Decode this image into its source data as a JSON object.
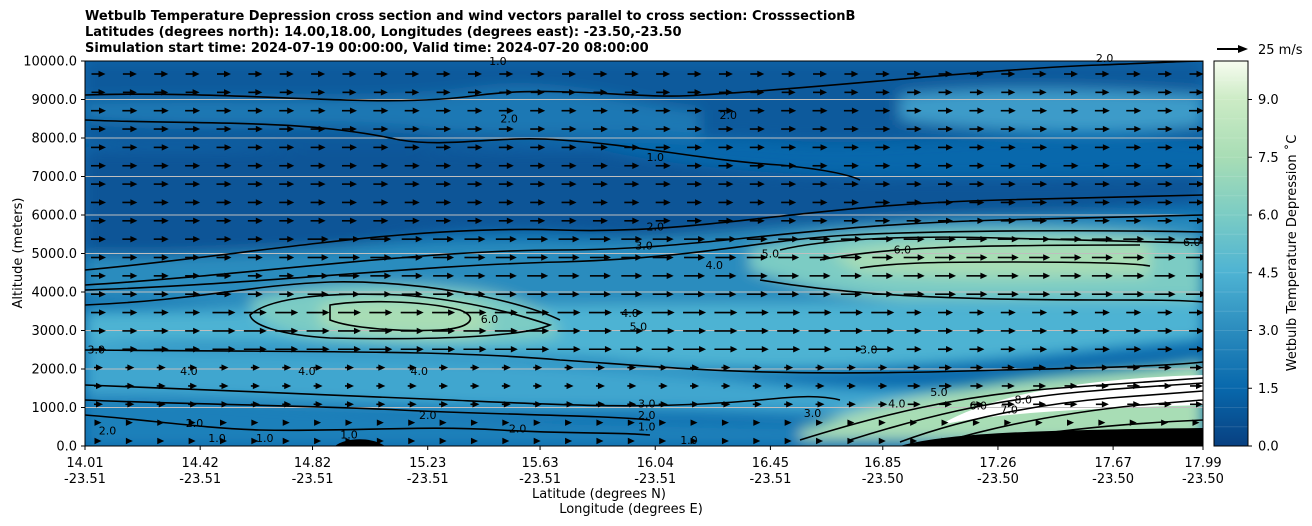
{
  "chart_data": {
    "type": "contour",
    "title_lines": [
      "Wetbulb Temperature Depression cross section and wind vectors parallel to cross section: CrosssectionB",
      "Latitudes (degrees north): 14.00,18.00, Longitudes (degrees east): -23.50,-23.50",
      "Simulation start time: 2024-07-19 00:00:00, Valid time: 2024-07-20 08:00:00"
    ],
    "ylabel": "Altitude (meters)",
    "xlabel_lat": "Latitude (degrees N)",
    "xlabel_lon": "Longitude (degrees E)",
    "ylim": [
      0,
      10000
    ],
    "yticks": [
      "0.0",
      "1000.0",
      "2000.0",
      "3000.0",
      "4000.0",
      "5000.0",
      "6000.0",
      "7000.0",
      "8000.0",
      "9000.0",
      "10000.0"
    ],
    "xticks": [
      {
        "lat": "14.01",
        "lon": "-23.51"
      },
      {
        "lat": "14.42",
        "lon": "-23.51"
      },
      {
        "lat": "14.82",
        "lon": "-23.51"
      },
      {
        "lat": "15.23",
        "lon": "-23.51"
      },
      {
        "lat": "15.63",
        "lon": "-23.51"
      },
      {
        "lat": "16.04",
        "lon": "-23.51"
      },
      {
        "lat": "16.45",
        "lon": "-23.51"
      },
      {
        "lat": "16.85",
        "lon": "-23.50"
      },
      {
        "lat": "17.26",
        "lon": "-23.50"
      },
      {
        "lat": "17.67",
        "lon": "-23.50"
      },
      {
        "lat": "17.99",
        "lon": "-23.50"
      }
    ],
    "grid": "horizontal",
    "colorbar": {
      "label": "Wetbulb Temperature Depression ˚C",
      "range": [
        0,
        10
      ],
      "ticks": [
        "0.0",
        "1.5",
        "3.0",
        "4.5",
        "6.0",
        "7.5",
        "9.0"
      ],
      "colormap": "GnBu_r"
    },
    "quiver_key": "25 m/s",
    "contour_labels": [
      {
        "text": "1.0",
        "lat": 15.48,
        "alt": 9900
      },
      {
        "text": "2.0",
        "lat": 15.52,
        "alt": 8400
      },
      {
        "text": "2.0",
        "lat": 16.3,
        "alt": 8500
      },
      {
        "text": "1.0",
        "lat": 16.04,
        "alt": 7400
      },
      {
        "text": "2.0",
        "lat": 16.04,
        "alt": 5600
      },
      {
        "text": "3.0",
        "lat": 16.0,
        "alt": 5100
      },
      {
        "text": "4.0",
        "lat": 16.25,
        "alt": 4600
      },
      {
        "text": "5.0",
        "lat": 16.45,
        "alt": 4900
      },
      {
        "text": "6.0",
        "lat": 16.92,
        "alt": 5000
      },
      {
        "text": "6.0",
        "lat": 17.95,
        "alt": 5200
      },
      {
        "text": "4.0",
        "lat": 15.95,
        "alt": 3350
      },
      {
        "text": "5.0",
        "lat": 15.98,
        "alt": 3000
      },
      {
        "text": "6.0",
        "lat": 15.45,
        "alt": 3200
      },
      {
        "text": "3.0",
        "lat": 14.05,
        "alt": 2400
      },
      {
        "text": "4.0",
        "lat": 14.38,
        "alt": 1850
      },
      {
        "text": "4.0",
        "lat": 14.8,
        "alt": 1850
      },
      {
        "text": "4.0",
        "lat": 15.2,
        "alt": 1850
      },
      {
        "text": "3.0",
        "lat": 16.8,
        "alt": 2400
      },
      {
        "text": "3.0",
        "lat": 16.01,
        "alt": 1000
      },
      {
        "text": "2.0",
        "lat": 16.01,
        "alt": 700
      },
      {
        "text": "1.0",
        "lat": 16.01,
        "alt": 400
      },
      {
        "text": "1.0",
        "lat": 16.16,
        "alt": 50
      },
      {
        "text": "3.0",
        "lat": 16.6,
        "alt": 750
      },
      {
        "text": "4.0",
        "lat": 16.9,
        "alt": 1000
      },
      {
        "text": "5.0",
        "lat": 17.05,
        "alt": 1300
      },
      {
        "text": "6.0",
        "lat": 17.19,
        "alt": 950
      },
      {
        "text": "7.0",
        "lat": 17.3,
        "alt": 850
      },
      {
        "text": "8.0",
        "lat": 17.35,
        "alt": 1100
      },
      {
        "text": "2.0",
        "lat": 14.4,
        "alt": 500
      },
      {
        "text": "1.0",
        "lat": 14.48,
        "alt": 100
      },
      {
        "text": "1.0",
        "lat": 14.95,
        "alt": 200
      },
      {
        "text": "2.0",
        "lat": 15.23,
        "alt": 700
      },
      {
        "text": "2.0",
        "lat": 15.55,
        "alt": 350
      },
      {
        "text": "2.0",
        "lat": 14.09,
        "alt": 300
      },
      {
        "text": "1.0",
        "lat": 14.65,
        "alt": 100
      },
      {
        "text": "2.0",
        "lat": 17.64,
        "alt": 9970
      }
    ]
  }
}
